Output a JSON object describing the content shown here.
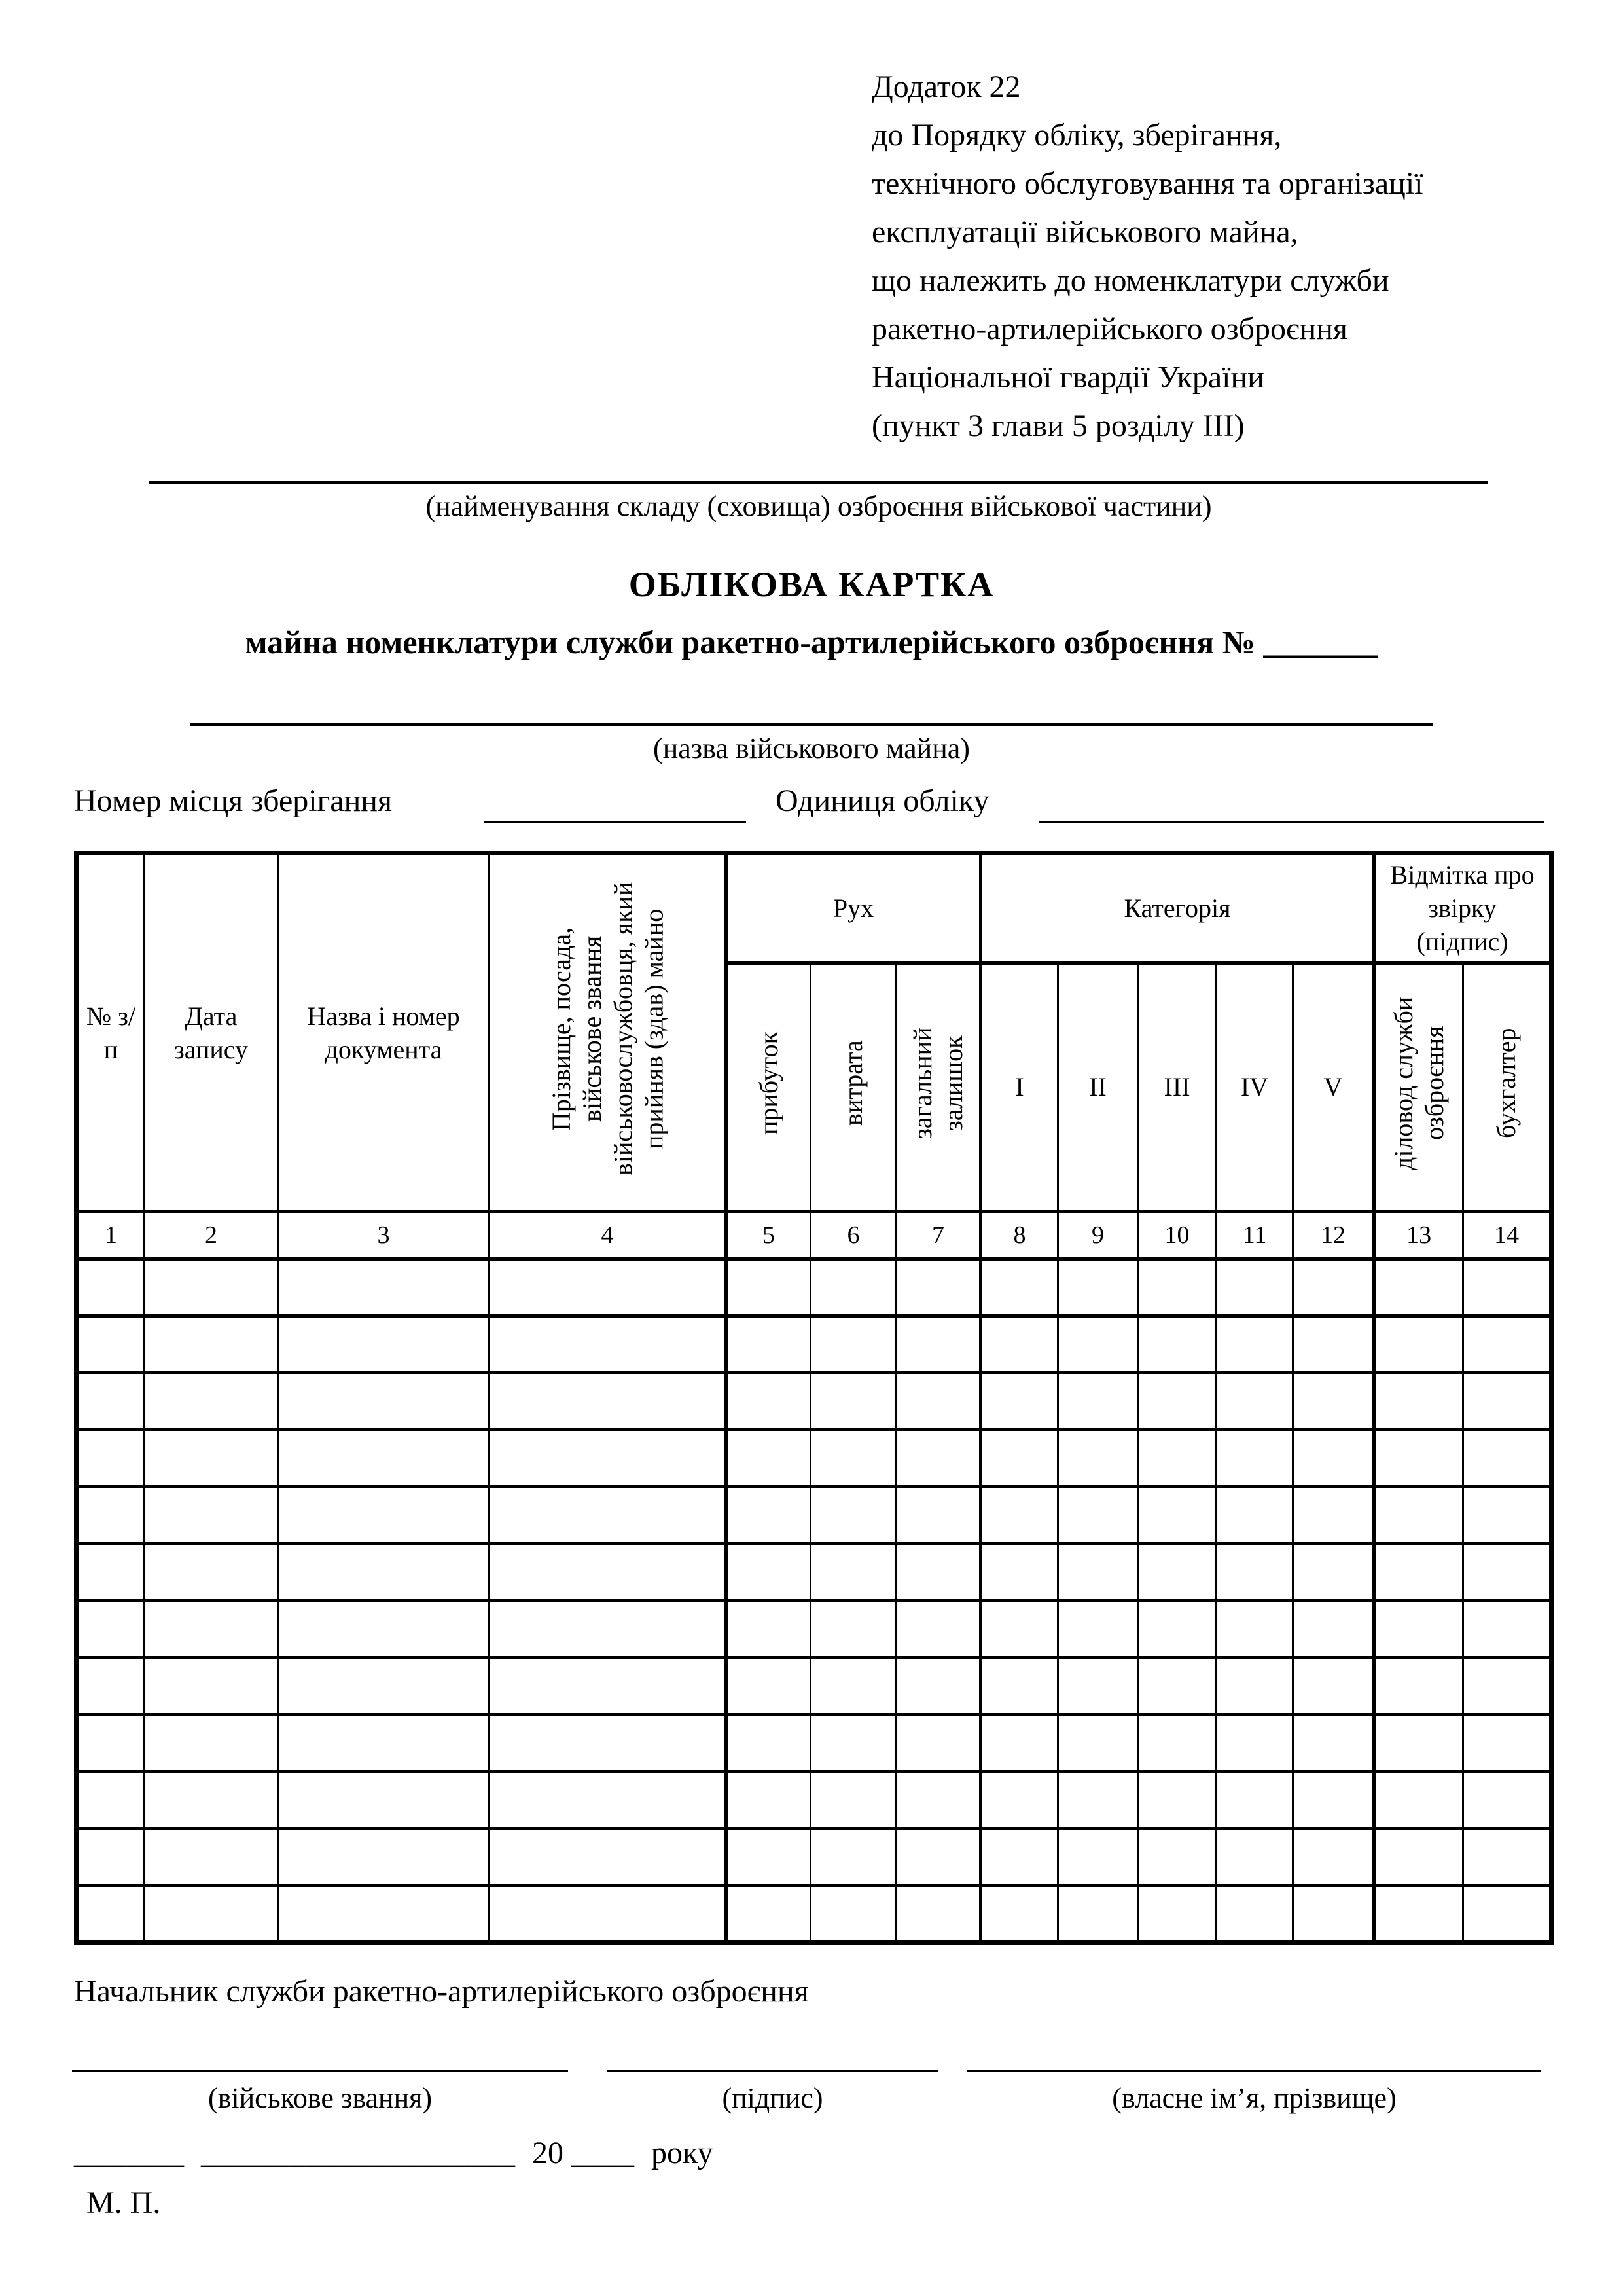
{
  "appendix": {
    "lines": [
      "Додаток 22",
      "до Порядку обліку, зберігання,",
      "технічного обслуговування та організації",
      "експлуатації військового майна,",
      "що належить до номенклатури служби",
      "ракетно-артилерійського озброєння",
      "Національної гвардії України",
      "(пункт 3 глави 5 розділу III)"
    ]
  },
  "captions": {
    "warehouse": "(найменування складу (сховища) озброєння військової частини)",
    "property": "(назва військового майна)"
  },
  "title": "ОБЛІКОВА КАРТКА",
  "subtitle": "майна номенклатури служби ракетно-артилерійського озброєння №",
  "subtitle_blank": "_______",
  "storage": {
    "label1": "Номер місця зберігання",
    "label2": "Одиниця обліку"
  },
  "table": {
    "col1": "№ з/п",
    "col2": "Дата запису",
    "col3": "Назва і номер документа",
    "col4": "Прізвище, посада, військове звання військовослужбовця, який прийняв (здав) майно",
    "groups": {
      "movement": "Рух",
      "category": "Категорія",
      "check": "Відмітка про звірку (підпис)"
    },
    "movement_cols": [
      "прибуток",
      "витрата",
      "загальний залишок"
    ],
    "category_cols": [
      "I",
      "II",
      "III",
      "IV",
      "V"
    ],
    "check_cols": [
      "діловод служби озброєння",
      "бухгалтер"
    ],
    "numbers": [
      "1",
      "2",
      "3",
      "4",
      "5",
      "6",
      "7",
      "8",
      "9",
      "10",
      "11",
      "12",
      "13",
      "14"
    ],
    "empty_rows": 12
  },
  "footer": {
    "chief": "Начальник служби ракетно-артилерійського озброєння",
    "sig_captions": [
      "(військове звання)",
      "(підпис)",
      "(власне ім’я, прізвище)"
    ],
    "date": {
      "day_blank": "_______",
      "month_blank": "____________________",
      "year_prefix": "20",
      "year_blank": "____",
      "year_suffix": "року"
    },
    "mp": "М. П."
  }
}
